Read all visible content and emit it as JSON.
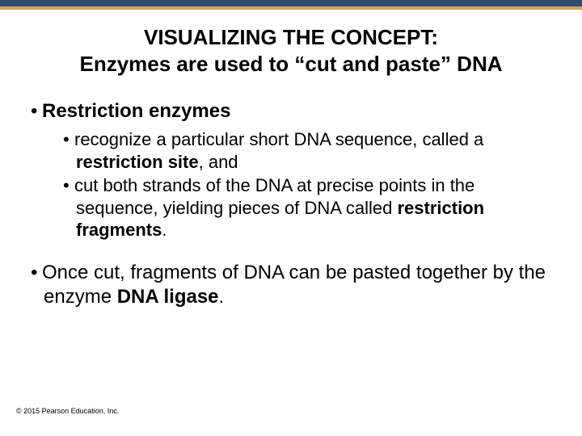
{
  "colors": {
    "top_bar": "#2f4a6e",
    "top_bar_accent": "#d9a24a",
    "text": "#000000",
    "background": "#ffffff"
  },
  "typography": {
    "title_fontsize": 26,
    "level1_fontsize": 24,
    "level2_fontsize": 22,
    "copyright_fontsize": 9,
    "font_family": "Arial"
  },
  "title": {
    "line1": "VISUALIZING THE CONCEPT:",
    "line2": "Enzymes are used to “cut and paste” DNA"
  },
  "bullets": {
    "b1_bold": "Restriction enzymes",
    "b1a_pre": "recognize a particular short DNA sequence, called a ",
    "b1a_bold": "restriction site",
    "b1a_post": ", and",
    "b1b_pre": "cut both strands of the DNA at precise points in the sequence, yielding pieces of DNA called ",
    "b1b_bold": "restriction fragments",
    "b1b_post": ".",
    "b2_pre": "Once cut, fragments of DNA can be pasted together by the enzyme ",
    "b2_bold": "DNA ligase",
    "b2_post": "."
  },
  "copyright": "© 2015 Pearson Education, Inc."
}
